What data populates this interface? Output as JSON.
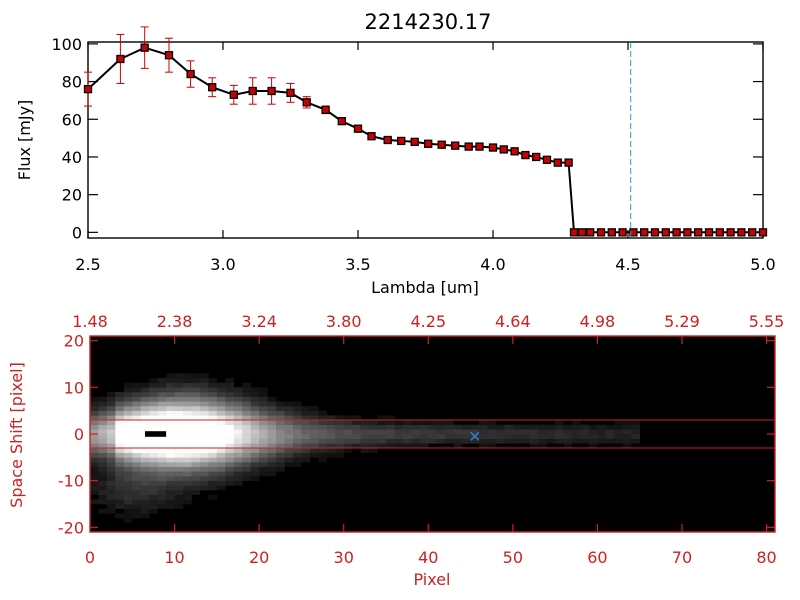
{
  "title": "2214230.17",
  "colors": {
    "background": "#ffffff",
    "axis": "#000000",
    "spectrum_line": "#000000",
    "marker": "#cc0000",
    "errorbar": "#cc0000",
    "vline": "#2aa0b4",
    "image_frame": "#cc2222",
    "bottom_axis_text": "#cc2222",
    "source_marker": "#3a7ad8"
  },
  "chart_data": [
    {
      "type": "line",
      "title": "2214230.17",
      "xlabel": "Lambda [um]",
      "ylabel": "Flux [mJy]",
      "xlim": [
        2.5,
        5.0
      ],
      "ylim": [
        -3,
        101
      ],
      "x_ticks": [
        "2.5",
        "3.0",
        "3.5",
        "4.0",
        "4.5",
        "5.0"
      ],
      "x_tick_values": [
        2.5,
        3.0,
        3.5,
        4.0,
        4.5,
        5.0
      ],
      "y_ticks": [
        "0",
        "20",
        "40",
        "60",
        "80",
        "100"
      ],
      "y_tick_values": [
        0,
        20,
        40,
        60,
        80,
        100
      ],
      "grid": false,
      "series": [
        {
          "x": [
            2.5,
            2.62,
            2.71,
            2.8,
            2.88,
            2.96,
            3.04,
            3.11,
            3.18,
            3.25,
            3.31,
            3.38,
            3.44,
            3.5,
            3.55,
            3.61,
            3.66,
            3.71,
            3.76,
            3.81,
            3.86,
            3.91,
            3.95,
            4.0,
            4.04,
            4.08,
            4.12,
            4.16,
            4.2,
            4.24,
            4.28,
            4.3,
            4.33,
            4.36,
            4.4,
            4.44,
            4.48,
            4.52,
            4.56,
            4.6,
            4.64,
            4.68,
            4.72,
            4.76,
            4.8,
            4.84,
            4.88,
            4.92,
            4.96,
            5.0
          ],
          "y": [
            76,
            92,
            98,
            94,
            84,
            77,
            73,
            75,
            75,
            74,
            69,
            65,
            59,
            55,
            51,
            49,
            48.5,
            48,
            47,
            46.5,
            46,
            45.5,
            45.5,
            45,
            44,
            43,
            41,
            40,
            38.5,
            37,
            37,
            0,
            0,
            0,
            0,
            0,
            0,
            0,
            0,
            0,
            0,
            0,
            0,
            0,
            0,
            0,
            0,
            0,
            0,
            0
          ],
          "yerr": [
            9,
            13,
            11,
            9,
            7,
            5,
            5,
            7,
            7,
            5,
            3,
            2,
            1.5,
            1,
            1,
            1,
            1,
            1,
            1,
            1,
            1,
            1,
            1,
            1,
            1,
            1,
            1,
            1,
            1,
            1,
            1,
            0,
            0,
            0,
            0,
            0,
            0,
            0,
            0,
            0,
            0,
            0,
            0,
            0,
            0,
            0,
            0,
            0,
            0,
            0
          ]
        }
      ],
      "vline_x": 4.51
    },
    {
      "type": "heatmap",
      "xlabel": "Pixel",
      "ylabel": "Space Shift [pixel]",
      "xlim": [
        0,
        81
      ],
      "ylim": [
        -21,
        21
      ],
      "x_ticks": [
        "0",
        "10",
        "20",
        "30",
        "40",
        "50",
        "60",
        "70",
        "80"
      ],
      "x_tick_values": [
        0,
        10,
        20,
        30,
        40,
        50,
        60,
        70,
        80
      ],
      "y_ticks": [
        "-20",
        "-10",
        "0",
        "10",
        "20"
      ],
      "y_tick_values": [
        -20,
        -10,
        0,
        10,
        20
      ],
      "top_ticks": [
        "1.48",
        "2.38",
        "3.24",
        "3.80",
        "4.25",
        "4.64",
        "4.98",
        "5.29",
        "5.55"
      ],
      "top_tick_values": [
        0,
        10,
        20,
        30,
        40,
        50,
        60,
        70,
        80
      ],
      "hlines": [
        3,
        -3
      ],
      "source_marker": [
        45.5,
        -0.5
      ],
      "description_free": true
    }
  ]
}
